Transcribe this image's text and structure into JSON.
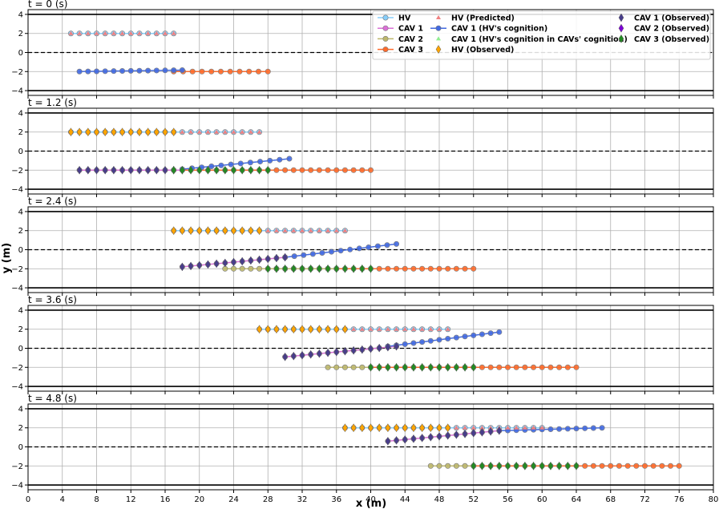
{
  "chart_data": {
    "type": "scatter",
    "xlabel": "x (m)",
    "ylabel": "y (m)",
    "xlim": [
      0,
      80
    ],
    "ylim": [
      -4.5,
      4.5
    ],
    "x_ticks": [
      0,
      4,
      8,
      12,
      16,
      20,
      24,
      28,
      32,
      36,
      40,
      44,
      48,
      52,
      56,
      60,
      64,
      68,
      72,
      76,
      80
    ],
    "y_ticks": [
      -4,
      -2,
      0,
      2,
      4
    ],
    "grid": true,
    "lane_boundaries": [
      4,
      -4
    ],
    "lane_centerline": 0,
    "legend": {
      "placement": "top-right",
      "entries": [
        {
          "label": "HV",
          "color": "#87cefa",
          "marker": "circle-line"
        },
        {
          "label": "CAV 1",
          "color": "#da70d6",
          "marker": "circle-line"
        },
        {
          "label": "CAV 2",
          "color": "#bdb76b",
          "marker": "circle-line"
        },
        {
          "label": "CAV 3",
          "color": "#ff6a2a",
          "marker": "circle-line"
        },
        {
          "label": "HV (Predicted)",
          "color": "#f08080",
          "marker": "triangle"
        },
        {
          "label": "CAV 1 (HV's cognition)",
          "color": "#4169e1",
          "marker": "circle-line"
        },
        {
          "label": "CAV 1 (HV's cognition in CAVs' cognition)",
          "color": "#90ee90",
          "marker": "triangle"
        },
        {
          "label": "HV (Observed)",
          "color": "#ffa500",
          "marker": "diamond"
        },
        {
          "label": "CAV 1 (Observed)",
          "color": "#483d8b",
          "marker": "diamond"
        },
        {
          "label": "CAV 2 (Observed)",
          "color": "#7b00d4",
          "marker": "diamond"
        },
        {
          "label": "CAV 3 (Observed)",
          "color": "#228b22",
          "marker": "diamond"
        }
      ]
    },
    "panels": [
      {
        "title": "t = 0 (s)",
        "series": [
          {
            "name": "HV",
            "x_start": 5,
            "x_end": 17,
            "y_start": 2,
            "y_end": 2,
            "n": 13
          },
          {
            "name": "HV (Predicted)",
            "x_start": 5,
            "x_end": 17,
            "y_start": 2,
            "y_end": 2,
            "n": 13
          },
          {
            "name": "CAV 3",
            "x_start": 17,
            "x_end": 28,
            "y_start": -2,
            "y_end": -2,
            "n": 11
          },
          {
            "name": "CAV 1 (HV's cognition)",
            "x_start": 6,
            "x_end": 18,
            "y_start": -2,
            "y_end": -1.85,
            "n": 13
          }
        ]
      },
      {
        "title": "t = 1.2 (s)",
        "series": [
          {
            "name": "HV",
            "x_start": 5,
            "x_end": 27,
            "y_start": 2,
            "y_end": 2,
            "n": 23
          },
          {
            "name": "HV (Predicted)",
            "x_start": 5,
            "x_end": 27,
            "y_start": 2,
            "y_end": 2,
            "n": 23
          },
          {
            "name": "HV (Observed)",
            "x_start": 5,
            "x_end": 17,
            "y_start": 2,
            "y_end": 2,
            "n": 13
          },
          {
            "name": "CAV 1",
            "x_start": 6,
            "x_end": 18,
            "y_start": -2,
            "y_end": -2,
            "n": 13
          },
          {
            "name": "CAV 1 (Observed)",
            "x_start": 6,
            "x_end": 18,
            "y_start": -2,
            "y_end": -2,
            "n": 13
          },
          {
            "name": "CAV 1 (HV's cognition)",
            "x_start": 18,
            "x_end": 30.5,
            "y_start": -1.9,
            "y_end": -0.8,
            "n": 12
          },
          {
            "name": "CAV 3",
            "x_start": 17,
            "x_end": 40,
            "y_start": -2,
            "y_end": -2,
            "n": 24
          },
          {
            "name": "CAV 3 (Observed)",
            "x_start": 17,
            "x_end": 28,
            "y_start": -2,
            "y_end": -2,
            "n": 12
          }
        ]
      },
      {
        "title": "t = 2.4 (s)",
        "series": [
          {
            "name": "HV",
            "x_start": 17,
            "x_end": 37,
            "y_start": 2,
            "y_end": 2,
            "n": 21
          },
          {
            "name": "HV (Predicted)",
            "x_start": 17,
            "x_end": 37,
            "y_start": 2,
            "y_end": 2,
            "n": 21
          },
          {
            "name": "HV (Observed)",
            "x_start": 17,
            "x_end": 27,
            "y_start": 2,
            "y_end": 2,
            "n": 11
          },
          {
            "name": "CAV 1",
            "x_start": 18,
            "x_end": 30,
            "y_start": -1.8,
            "y_end": -0.8,
            "n": 13
          },
          {
            "name": "CAV 1 (Observed)",
            "x_start": 18,
            "x_end": 30,
            "y_start": -1.8,
            "y_end": -0.8,
            "n": 13
          },
          {
            "name": "CAV 1 (HV's cognition)",
            "x_start": 30,
            "x_end": 43,
            "y_start": -0.8,
            "y_end": 0.6,
            "n": 13
          },
          {
            "name": "CAV 2",
            "x_start": 23,
            "x_end": 36,
            "y_start": -2,
            "y_end": -2,
            "n": 14
          },
          {
            "name": "CAV 3",
            "x_start": 28,
            "x_end": 52,
            "y_start": -2,
            "y_end": -2,
            "n": 25
          },
          {
            "name": "CAV 3 (Observed)",
            "x_start": 28,
            "x_end": 40,
            "y_start": -2,
            "y_end": -2,
            "n": 13
          }
        ]
      },
      {
        "title": "t = 3.6 (s)",
        "series": [
          {
            "name": "HV",
            "x_start": 27,
            "x_end": 49,
            "y_start": 2,
            "y_end": 2,
            "n": 23
          },
          {
            "name": "HV (Predicted)",
            "x_start": 27,
            "x_end": 49,
            "y_start": 2,
            "y_end": 2,
            "n": 23
          },
          {
            "name": "HV (Observed)",
            "x_start": 27,
            "x_end": 37,
            "y_start": 2,
            "y_end": 2,
            "n": 11
          },
          {
            "name": "CAV 1",
            "x_start": 30,
            "x_end": 43,
            "y_start": -0.9,
            "y_end": 0.2,
            "n": 14
          },
          {
            "name": "CAV 1 (Observed)",
            "x_start": 30,
            "x_end": 43,
            "y_start": -0.9,
            "y_end": 0.2,
            "n": 14
          },
          {
            "name": "CAV 1 (HV's cognition)",
            "x_start": 42,
            "x_end": 55,
            "y_start": 0.2,
            "y_end": 1.7,
            "n": 14
          },
          {
            "name": "CAV 2",
            "x_start": 35,
            "x_end": 40,
            "y_start": -2,
            "y_end": -2,
            "n": 6
          },
          {
            "name": "CAV 3",
            "x_start": 40,
            "x_end": 64,
            "y_start": -2,
            "y_end": -2,
            "n": 25
          },
          {
            "name": "CAV 3 (Observed)",
            "x_start": 40,
            "x_end": 52,
            "y_start": -2,
            "y_end": -2,
            "n": 13
          }
        ]
      },
      {
        "title": "t = 4.8 (s)",
        "series": [
          {
            "name": "HV",
            "x_start": 37,
            "x_end": 60,
            "y_start": 2,
            "y_end": 2,
            "n": 24
          },
          {
            "name": "HV (Predicted)",
            "x_start": 37,
            "x_end": 60,
            "y_start": 2,
            "y_end": 2,
            "n": 24
          },
          {
            "name": "HV (Observed)",
            "x_start": 37,
            "x_end": 49,
            "y_start": 2,
            "y_end": 2,
            "n": 13
          },
          {
            "name": "CAV 1",
            "x_start": 42,
            "x_end": 55,
            "y_start": 0.6,
            "y_end": 1.7,
            "n": 14
          },
          {
            "name": "CAV 1 (Observed)",
            "x_start": 42,
            "x_end": 55,
            "y_start": 0.6,
            "y_end": 1.7,
            "n": 14
          },
          {
            "name": "CAV 1 (HV's cognition)",
            "x_start": 55,
            "x_end": 67,
            "y_start": 1.7,
            "y_end": 2.0,
            "n": 13
          },
          {
            "name": "CAV 2",
            "x_start": 47,
            "x_end": 52,
            "y_start": -2,
            "y_end": -2,
            "n": 6
          },
          {
            "name": "CAV 3",
            "x_start": 52,
            "x_end": 76,
            "y_start": -2,
            "y_end": -2,
            "n": 25
          },
          {
            "name": "CAV 3 (Observed)",
            "x_start": 52,
            "x_end": 64,
            "y_start": -2,
            "y_end": -2,
            "n": 13
          }
        ]
      }
    ]
  }
}
